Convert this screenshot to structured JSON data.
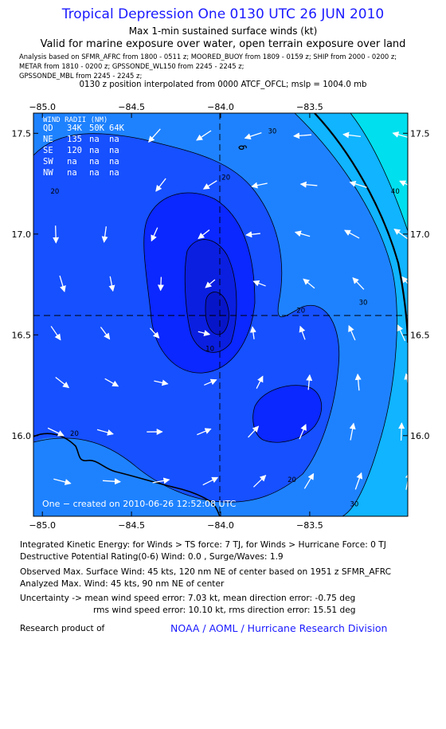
{
  "header": {
    "title": "Tropical Depression One 0130 UTC 26 JUN 2010",
    "subtitle1": "Max 1-min sustained surface winds (kt)",
    "subtitle2": "Valid for marine exposure over water, open terrain exposure over land",
    "analysis_line1": "Analysis based on   SFMR_AFRC from 1800 - 0511 z;  MOORED_BUOY from 1809 - 0159 z;  SHIP from 2000 - 0200 z;",
    "analysis_line2": "METAR from 1810 - 0200 z;  GPSSONDE_WL150 from 2245 - 2245 z;",
    "analysis_line3": "GPSSONDE_MBL from 2245 - 2245 z;",
    "interp_line": "0130 z position interpolated from 0000 ATCF_OFCL; mslp = 1004.0 mb"
  },
  "chart_data": {
    "type": "heatmap",
    "title": "Tropical Depression One 0130 UTC 26 JUN 2010",
    "xlim": [
      -85.05,
      -82.95
    ],
    "ylim": [
      15.6,
      17.6
    ],
    "x_ticks": [
      -85.0,
      -84.5,
      -84.0,
      -83.5
    ],
    "y_ticks": [
      16.0,
      16.5,
      17.0,
      17.5
    ],
    "x_tick_labels": [
      "−85.0",
      "−84.5",
      "−84.0",
      "−83.5"
    ],
    "y_tick_labels": [
      "16.0",
      "16.5",
      "17.0",
      "17.5"
    ],
    "center": {
      "lon": -84.02,
      "lat": 16.58
    },
    "contour_labels": [
      {
        "text": "20",
        "lon": -84.93,
        "lat": 17.2
      },
      {
        "text": "20",
        "lon": -83.97,
        "lat": 17.27
      },
      {
        "text": "30",
        "lon": -83.71,
        "lat": 17.5
      },
      {
        "text": "40",
        "lon": -83.02,
        "lat": 17.2
      },
      {
        "text": "30",
        "lon": -83.2,
        "lat": 16.65
      },
      {
        "text": "20",
        "lon": -83.55,
        "lat": 16.61
      },
      {
        "text": "10",
        "lon": -84.06,
        "lat": 16.42
      },
      {
        "text": "20",
        "lon": -84.82,
        "lat": 16.0
      },
      {
        "text": "20",
        "lon": -83.6,
        "lat": 15.77
      },
      {
        "text": "30",
        "lon": -83.25,
        "lat": 15.65
      }
    ],
    "color_levels_kt": [
      "0-10",
      "10-20",
      "20-30",
      "30-40",
      "40+"
    ],
    "level_colors": [
      "#0a28ff",
      "#1650ff",
      "#1e82ff",
      "#10b4ff",
      "#00dfee"
    ]
  },
  "wind_radii": {
    "header": "WIND RADII (NM)",
    "columns": [
      "QD",
      "34K",
      "50K",
      "64K"
    ],
    "rows": [
      [
        "NE",
        "135",
        "na",
        "na"
      ],
      [
        "SE",
        "120",
        "na",
        "na"
      ],
      [
        "SW",
        "na",
        "na",
        "na"
      ],
      [
        "NW",
        "na",
        "na",
        "na"
      ]
    ]
  },
  "plot_credit": "One − created on 2010-06-26 12:52:08 UTC",
  "footer": {
    "ike": "Integrated Kinetic Energy:  for Winds > TS force: 7 TJ,  for Winds > Hurricane Force: 0 TJ",
    "dpr": "Destructive Potential Rating(0-6)   Wind: 0.0 , Surge/Waves: 1.9",
    "obs_max": "Observed Max. Surface Wind: 45 kts, 120 nm NE of center based on 1951 z SFMR_AFRC",
    "analyzed_max": "Analyzed Max. Wind: 45 kts, 90 nm NE of center",
    "uncertainty1": "Uncertainty -> mean wind speed error: 7.03 kt,   mean direction error:  -0.75 deg",
    "uncertainty2": "rms wind speed error: 10.10 kt,   rms direction error: 15.51 deg",
    "research_label": "Research product of",
    "research_org": "NOAA / AOML / Hurricane Research Division"
  }
}
